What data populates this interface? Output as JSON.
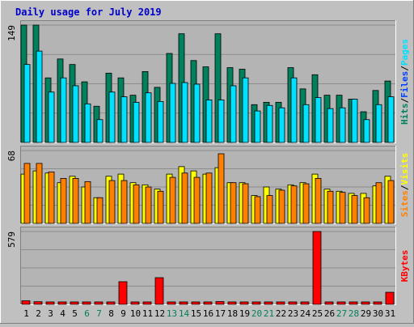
{
  "chart_data": {
    "title": "Daily usage for July 2019",
    "days": [
      "1",
      "2",
      "3",
      "4",
      "5",
      "6",
      "7",
      "8",
      "9",
      "10",
      "11",
      "12",
      "13",
      "14",
      "15",
      "16",
      "17",
      "18",
      "19",
      "20",
      "21",
      "22",
      "23",
      "24",
      "25",
      "26",
      "27",
      "28",
      "29",
      "30",
      "31"
    ],
    "weekend_days": [
      "6",
      "7",
      "13",
      "14",
      "20",
      "21",
      "27",
      "28"
    ],
    "colors": {
      "background": "#c0c0c0",
      "plot": "#b4b4b4",
      "hits": "#00805c",
      "files": "#0040ff",
      "pages": "#00e0ff",
      "visits": "#ffff00",
      "sites": "#ff8000",
      "kbytes": "#ff0000",
      "title": "#0000cc",
      "weekday_label": "#000000",
      "weekend_label": "#00805c"
    },
    "charts": [
      {
        "type": "bar",
        "max_label": "149",
        "max": 149,
        "legend": [
          {
            "label": "Hits",
            "color_key": "hits"
          },
          {
            "label": "Files",
            "color_key": "files"
          },
          {
            "label": "Pages",
            "color_key": "pages"
          }
        ],
        "series": [
          {
            "name": "Hits",
            "color_key": "hits",
            "values": [
              149,
              149,
              82,
              106,
              99,
              77,
              46,
              88,
              82,
              60,
              90,
              70,
              113,
              138,
              104,
              96,
              138,
              95,
              93,
              48,
              51,
              51,
              95,
              68,
              86,
              60,
              60,
              55,
              39,
              66,
              78
            ]
          },
          {
            "name": "Pages",
            "color_key": "pages",
            "values": [
              99,
              116,
              64,
              82,
              72,
              49,
              29,
              64,
              58,
              51,
              63,
              52,
              75,
              76,
              74,
              54,
              54,
              72,
              82,
              40,
              47,
              44,
              82,
              48,
              57,
              43,
              44,
              55,
              29,
              48,
              58
            ]
          }
        ]
      },
      {
        "type": "bar",
        "max_label": "68",
        "max": 68,
        "legend": [
          {
            "label": "Sites",
            "color_key": "sites"
          },
          {
            "label": "Visits",
            "color_key": "visits"
          }
        ],
        "series": [
          {
            "name": "Visits",
            "color_key": "visits",
            "values": [
              46,
              49,
              47,
              38,
              44,
              34,
              24,
              44,
              46,
              38,
              36,
              32,
              46,
              53,
              49,
              46,
              52,
              38,
              38,
              26,
              34,
              32,
              36,
              38,
              46,
              32,
              30,
              28,
              28,
              35,
              44
            ]
          },
          {
            "name": "Sites",
            "color_key": "sites",
            "values": [
              56,
              56,
              48,
              42,
              42,
              39,
              24,
              40,
              40,
              36,
              34,
              30,
              43,
              47,
              43,
              47,
              65,
              38,
              37,
              25,
              26,
              31,
              35,
              37,
              42,
              30,
              29,
              26,
              24,
              38,
              40
            ]
          }
        ]
      },
      {
        "type": "bar",
        "max_label": "579",
        "max": 579,
        "legend": [
          {
            "label": "KBytes",
            "color_key": "kbytes"
          }
        ],
        "series": [
          {
            "name": "KBytes",
            "color_key": "kbytes",
            "values": [
              28,
              21,
              17,
              17,
              17,
              17,
              12,
              12,
              180,
              19,
              17,
              212,
              17,
              16,
              17,
              17,
              22,
              17,
              17,
              17,
              19,
              17,
              17,
              17,
              579,
              17,
              17,
              17,
              12,
              12,
              96
            ]
          }
        ]
      }
    ]
  }
}
